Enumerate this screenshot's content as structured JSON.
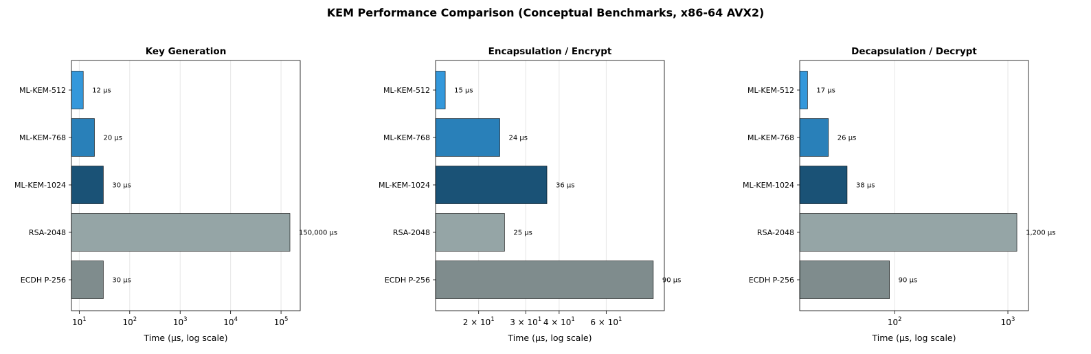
{
  "title": "KEM Performance Comparison (Conceptual Benchmarks, x86-64 AVX2)",
  "colors": {
    "ML-KEM-512": "#3498db",
    "ML-KEM-768": "#2980b9",
    "ML-KEM-1024": "#1a5276",
    "RSA-2048": "#95a5a6",
    "ECDH P-256": "#7f8c8d"
  },
  "chart_data": [
    {
      "type": "bar",
      "orientation": "horizontal",
      "title": "Key Generation",
      "xlabel": "Time (μs, log scale)",
      "xscale": "log",
      "xlim": [
        7,
        240000
      ],
      "xticks": [
        {
          "value": 10,
          "base": "10",
          "exp": "1"
        },
        {
          "value": 100,
          "base": "10",
          "exp": "2"
        },
        {
          "value": 1000,
          "base": "10",
          "exp": "3"
        },
        {
          "value": 10000,
          "base": "10",
          "exp": "4"
        },
        {
          "value": 100000,
          "base": "10",
          "exp": "5"
        }
      ],
      "grid": true,
      "categories": [
        "ML-KEM-512",
        "ML-KEM-768",
        "ML-KEM-1024",
        "RSA-2048",
        "ECDH P-256"
      ],
      "values": [
        12,
        20,
        30,
        150000,
        30
      ],
      "labels": [
        "12 μs",
        "20 μs",
        "30 μs",
        "150,000 μs",
        "30 μs"
      ]
    },
    {
      "type": "bar",
      "orientation": "horizontal",
      "title": "Encapsulation / Encrypt",
      "xlabel": "Time (μs, log scale)",
      "xscale": "log",
      "xlim": [
        13.8,
        99
      ],
      "xticks": [
        {
          "value": 20,
          "base": "2 × 10",
          "exp": "1"
        },
        {
          "value": 30,
          "base": "3 × 10",
          "exp": "1"
        },
        {
          "value": 40,
          "base": "4 × 10",
          "exp": "1"
        },
        {
          "value": 60,
          "base": "6 × 10",
          "exp": "1"
        }
      ],
      "grid": true,
      "categories": [
        "ML-KEM-512",
        "ML-KEM-768",
        "ML-KEM-1024",
        "RSA-2048",
        "ECDH P-256"
      ],
      "values": [
        15,
        24,
        36,
        25,
        90
      ],
      "labels": [
        "15 μs",
        "24 μs",
        "36 μs",
        "25 μs",
        "90 μs"
      ]
    },
    {
      "type": "bar",
      "orientation": "horizontal",
      "title": "Decapsulation / Decrypt",
      "xlabel": "Time (μs, log scale)",
      "xscale": "log",
      "xlim": [
        14.5,
        1520
      ],
      "xticks": [
        {
          "value": 100,
          "base": "10",
          "exp": "2"
        },
        {
          "value": 1000,
          "base": "10",
          "exp": "3"
        }
      ],
      "grid": true,
      "categories": [
        "ML-KEM-512",
        "ML-KEM-768",
        "ML-KEM-1024",
        "RSA-2048",
        "ECDH P-256"
      ],
      "values": [
        17,
        26,
        38,
        1200,
        90
      ],
      "labels": [
        "17 μs",
        "26 μs",
        "38 μs",
        "1,200 μs",
        "90 μs"
      ]
    }
  ]
}
